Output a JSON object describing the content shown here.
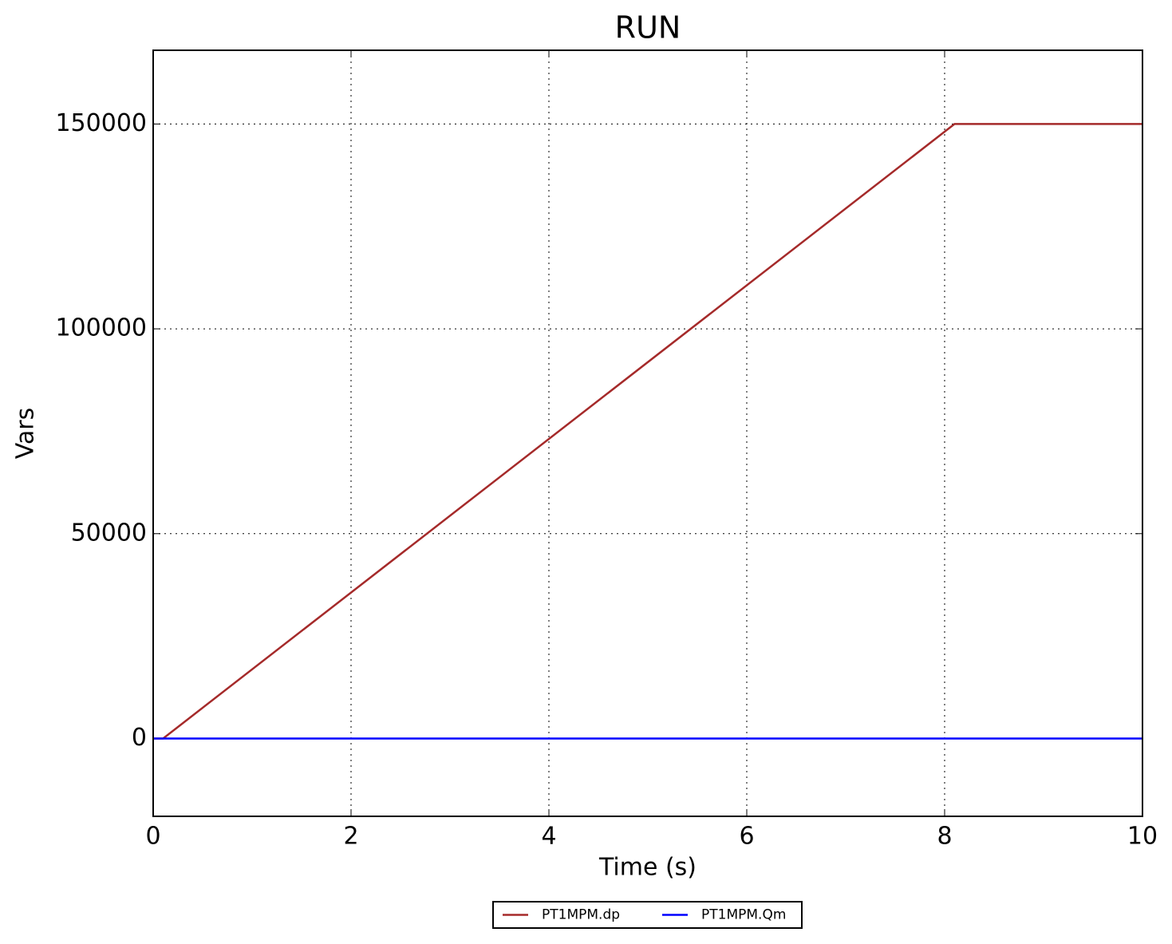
{
  "chart_data": {
    "type": "line",
    "title": "RUN",
    "xlabel": "Time (s)",
    "ylabel": "Vars",
    "xlim": [
      0,
      10
    ],
    "xticks": [
      0,
      2,
      4,
      6,
      8,
      10
    ],
    "ylim": [
      -19000,
      168000
    ],
    "yticks": [
      0,
      50000,
      100000,
      150000
    ],
    "grid": true,
    "legend": "bottom",
    "series": [
      {
        "name": "PT1MPM.dp",
        "color": "#a52a2a",
        "x": [
          0,
          0.1,
          8.1,
          10
        ],
        "values": [
          0,
          0,
          150000,
          150000
        ]
      },
      {
        "name": "PT1MPM.Qm",
        "color": "#0000ff",
        "x": [
          0,
          10
        ],
        "values": [
          0,
          0
        ]
      }
    ]
  }
}
